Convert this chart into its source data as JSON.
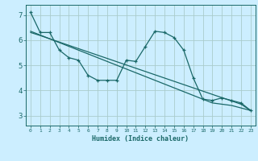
{
  "xlabel": "Humidex (Indice chaleur)",
  "background_color": "#cceeff",
  "grid_color": "#aacccc",
  "line_color": "#1a6868",
  "xlim": [
    -0.5,
    23.5
  ],
  "ylim": [
    2.6,
    7.4
  ],
  "yticks": [
    3,
    4,
    5,
    6,
    7
  ],
  "xticks": [
    0,
    1,
    2,
    3,
    4,
    5,
    6,
    7,
    8,
    9,
    10,
    11,
    12,
    13,
    14,
    15,
    16,
    17,
    18,
    19,
    20,
    21,
    22,
    23
  ],
  "line1_x": [
    0,
    1,
    2,
    3,
    4,
    5,
    6,
    7,
    8,
    9,
    10,
    11,
    12,
    13,
    14,
    15,
    16,
    17,
    18,
    19,
    20,
    21,
    22,
    23
  ],
  "line1_y": [
    7.1,
    6.3,
    6.3,
    5.6,
    5.3,
    5.2,
    4.6,
    4.4,
    4.4,
    4.4,
    5.2,
    5.15,
    5.75,
    6.35,
    6.3,
    6.1,
    5.6,
    4.5,
    3.65,
    3.6,
    3.7,
    3.6,
    3.5,
    3.2
  ],
  "line2_x": [
    0,
    1,
    2,
    3,
    4,
    5,
    6,
    7,
    8,
    9,
    10,
    11,
    12,
    13,
    14,
    15,
    16,
    17,
    18,
    19,
    20,
    21,
    22,
    23
  ],
  "line2_y": [
    6.35,
    6.2,
    6.05,
    5.9,
    5.75,
    5.6,
    5.45,
    5.3,
    5.15,
    5.0,
    4.85,
    4.7,
    4.55,
    4.4,
    4.25,
    4.1,
    3.95,
    3.8,
    3.65,
    3.5,
    3.45,
    3.4,
    3.3,
    3.2
  ],
  "line3_x": [
    0,
    1,
    2,
    3,
    4,
    5,
    6,
    7,
    8,
    9,
    10,
    11,
    12,
    13,
    14,
    15,
    16,
    17,
    18,
    19,
    20,
    21,
    22,
    23
  ],
  "line3_y": [
    6.3,
    6.18,
    6.05,
    5.92,
    5.79,
    5.66,
    5.53,
    5.4,
    5.27,
    5.14,
    5.01,
    4.88,
    4.75,
    4.62,
    4.49,
    4.36,
    4.23,
    4.1,
    3.97,
    3.84,
    3.71,
    3.58,
    3.45,
    3.2
  ]
}
